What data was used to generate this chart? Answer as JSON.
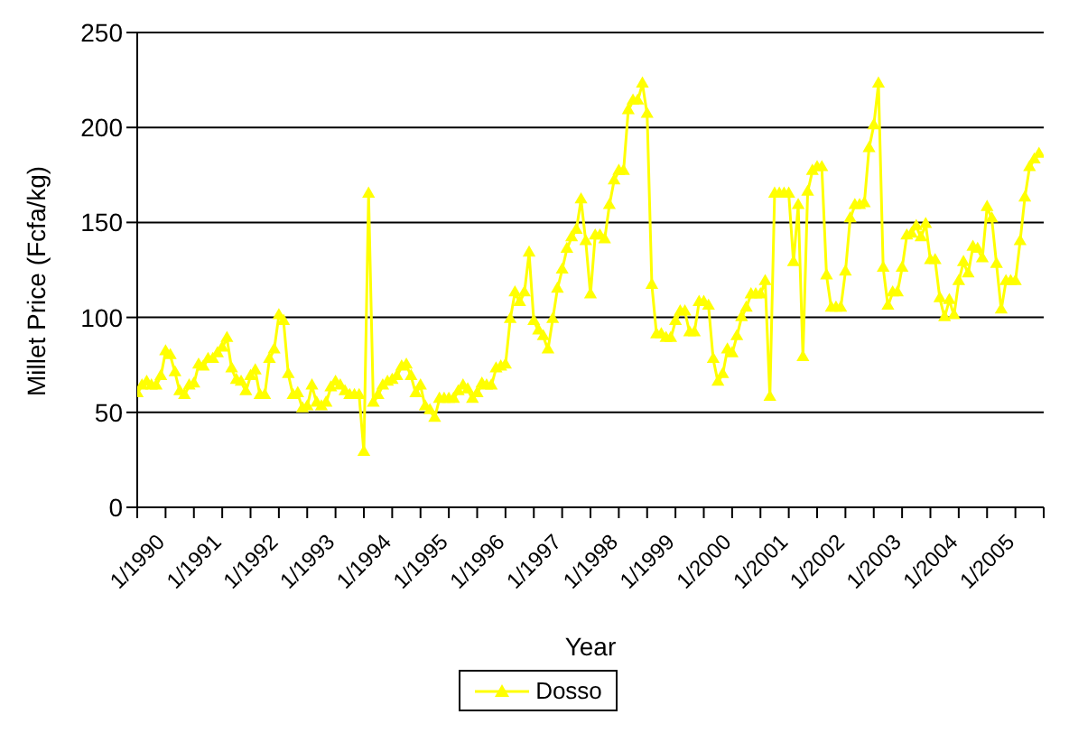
{
  "chart_data": {
    "type": "line",
    "xlabel": "Year",
    "ylabel": "Millet Price (Fcfa/kg)",
    "categories": [
      "1/1990",
      null,
      null,
      null,
      null,
      null,
      null,
      null,
      null,
      null,
      null,
      null,
      "1/1991",
      null,
      null,
      null,
      null,
      null,
      null,
      null,
      null,
      null,
      null,
      null,
      "1/1992",
      null,
      null,
      null,
      null,
      null,
      null,
      null,
      null,
      null,
      null,
      null,
      "1/1993",
      null,
      null,
      null,
      null,
      null,
      null,
      null,
      null,
      null,
      null,
      null,
      "1/1994",
      null,
      null,
      null,
      null,
      null,
      null,
      null,
      null,
      null,
      null,
      null,
      "1/1995",
      null,
      null,
      null,
      null,
      null,
      null,
      null,
      null,
      null,
      null,
      null,
      "1/1996",
      null,
      null,
      null,
      null,
      null,
      null,
      null,
      null,
      null,
      null,
      null,
      "1/1997",
      null,
      null,
      null,
      null,
      null,
      null,
      null,
      null,
      null,
      null,
      null,
      "1/1998",
      null,
      null,
      null,
      null,
      null,
      null,
      null,
      null,
      null,
      null,
      null,
      "1/1999",
      null,
      null,
      null,
      null,
      null,
      null,
      null,
      null,
      null,
      null,
      null,
      "1/2000",
      null,
      null,
      null,
      null,
      null,
      null,
      null,
      null,
      null,
      null,
      null,
      "1/2001",
      null,
      null,
      null,
      null,
      null,
      null,
      null,
      null,
      null,
      null,
      null,
      "1/2002",
      null,
      null,
      null,
      null,
      null,
      null,
      null,
      null,
      null,
      null,
      null,
      "1/2003",
      null,
      null,
      null,
      null,
      null,
      null,
      null,
      null,
      null,
      null,
      null,
      "1/2004",
      null,
      null,
      null,
      null,
      null,
      null,
      null,
      null,
      null,
      null,
      null,
      "1/2005",
      null,
      null,
      null,
      null,
      null,
      null,
      null,
      null,
      null,
      null,
      null
    ],
    "series": [
      {
        "name": "Dosso",
        "color": "#ffff00",
        "values": [
          60,
          64,
          66,
          64,
          64,
          69,
          82,
          80,
          71,
          61,
          59,
          64,
          65,
          75,
          74,
          78,
          78,
          81,
          84,
          89,
          73,
          67,
          66,
          61,
          69,
          72,
          59,
          59,
          78,
          83,
          101,
          98,
          70,
          59,
          60,
          52,
          53,
          64,
          55,
          53,
          55,
          63,
          66,
          64,
          61,
          59,
          59,
          59,
          29,
          165,
          55,
          59,
          64,
          66,
          67,
          69,
          74,
          75,
          69,
          60,
          64,
          53,
          51,
          47,
          57,
          57,
          57,
          57,
          61,
          64,
          62,
          57,
          60,
          65,
          64,
          64,
          73,
          74,
          75,
          99,
          113,
          108,
          113,
          134,
          98,
          93,
          90,
          83,
          99,
          115,
          125,
          136,
          142,
          146,
          162,
          140,
          112,
          143,
          143,
          141,
          159,
          172,
          177,
          177,
          209,
          214,
          214,
          223,
          207,
          117,
          91,
          91,
          89,
          89,
          98,
          103,
          103,
          92,
          92,
          108,
          108,
          106,
          78,
          66,
          70,
          83,
          81,
          90,
          100,
          105,
          112,
          112,
          112,
          119,
          58,
          165,
          165,
          165,
          165,
          129,
          159,
          79,
          166,
          177,
          179,
          179,
          122,
          105,
          105,
          105,
          124,
          152,
          159,
          159,
          160,
          189,
          201,
          223,
          126,
          106,
          113,
          113,
          126,
          143,
          144,
          148,
          142,
          149,
          130,
          130,
          110,
          100,
          109,
          101,
          119,
          129,
          123,
          137,
          136,
          131,
          158,
          152,
          128,
          104,
          119,
          119,
          119,
          140,
          163,
          179,
          183,
          186
        ]
      }
    ],
    "ylim": [
      0,
      250
    ],
    "yticks": [
      0,
      50,
      100,
      150,
      200,
      250
    ],
    "grid": "y",
    "legend": "bottom",
    "marker": "triangle",
    "line_style": "solid"
  }
}
